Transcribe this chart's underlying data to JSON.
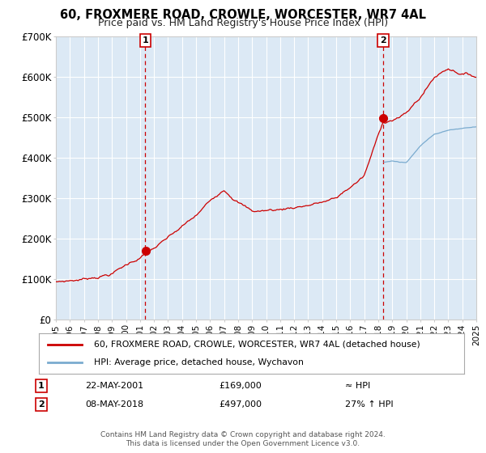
{
  "title": "60, FROXMERE ROAD, CROWLE, WORCESTER, WR7 4AL",
  "subtitle": "Price paid vs. HM Land Registry's House Price Index (HPI)",
  "hpi_label": "HPI: Average price, detached house, Wychavon",
  "property_label": "60, FROXMERE ROAD, CROWLE, WORCESTER, WR7 4AL (detached house)",
  "footer1": "Contains HM Land Registry data © Crown copyright and database right 2024.",
  "footer2": "This data is licensed under the Open Government Licence v3.0.",
  "annotation1": {
    "num": "1",
    "date": "22-MAY-2001",
    "price": "£169,000",
    "note": "≈ HPI"
  },
  "annotation2": {
    "num": "2",
    "date": "08-MAY-2018",
    "price": "£497,000",
    "note": "27% ↑ HPI"
  },
  "sale1_year": 2001.38,
  "sale1_value": 169000,
  "sale2_year": 2018.35,
  "sale2_value": 497000,
  "hpi_color": "#7aabcf",
  "property_color": "#cc0000",
  "fig_bg": "#ffffff",
  "plot_bg": "#dce9f5",
  "grid_color": "#ffffff",
  "dashed_line_color": "#cc0000",
  "xmin": 1995,
  "xmax": 2025,
  "ymin": 0,
  "ymax": 700000,
  "yticks": [
    0,
    100000,
    200000,
    300000,
    400000,
    500000,
    600000,
    700000
  ],
  "ytick_labels": [
    "£0",
    "£100K",
    "£200K",
    "£300K",
    "£400K",
    "£500K",
    "£600K",
    "£700K"
  ]
}
